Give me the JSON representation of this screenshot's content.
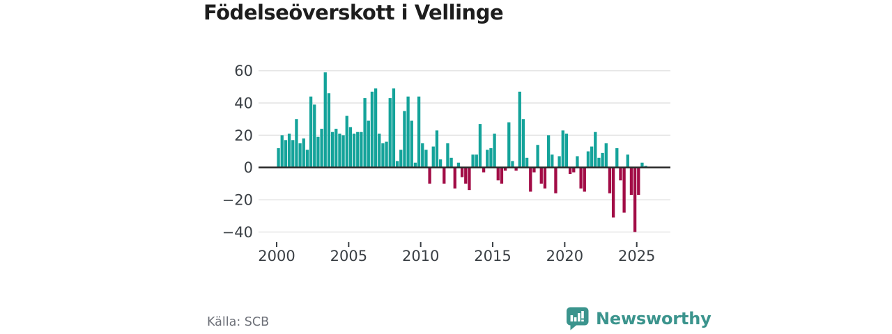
{
  "page": {
    "title": "Födelseöverskott i Vellinge"
  },
  "footer": {
    "source": "Källa: SCB",
    "logo_text": "Newsworthy"
  },
  "icons": {
    "logo_icon": "bar-chart-speech-bubble"
  },
  "colors": {
    "positive_bar": "#14a39a",
    "negative_bar": "#a20c46",
    "zero_axis": "#2e2e2e",
    "gridline": "#e3e3e3",
    "tick_text": "#3a3f44",
    "title_text": "#1d1d1d",
    "source_text": "#6d7078",
    "logo": "#3b948d"
  },
  "chart_data": {
    "type": "bar",
    "title": "Födelseöverskott i Vellinge",
    "xlabel": "",
    "ylabel": "",
    "period": "quarterly",
    "start": "2000 Q1",
    "end": "2025 Q3",
    "ylim": [
      -45,
      65
    ],
    "grid": true,
    "y_ticks": [
      60,
      40,
      20,
      0,
      -20,
      -40
    ],
    "x_ticks": [
      2000,
      2005,
      2010,
      2015,
      2020,
      2025
    ],
    "series": [
      {
        "name": "Födelseöverskott",
        "values": [
          12,
          20,
          17,
          21,
          17,
          30,
          15,
          18,
          11,
          44,
          39,
          19,
          24,
          59,
          46,
          22,
          24,
          21,
          20,
          32,
          25,
          21,
          22,
          22,
          43,
          29,
          47,
          49,
          21,
          15,
          16,
          43,
          49,
          4,
          11,
          35,
          44,
          29,
          3,
          44,
          15,
          11,
          -10,
          13,
          23,
          5,
          -10,
          15,
          6,
          -13,
          3,
          -6,
          -10,
          -14,
          8,
          8,
          27,
          -3,
          11,
          12,
          21,
          -8,
          -10,
          -2,
          28,
          4,
          -2,
          47,
          30,
          6,
          -15,
          -3,
          14,
          -10,
          -13,
          20,
          8,
          -16,
          7,
          23,
          21,
          -4,
          -3,
          7,
          -13,
          -15,
          10,
          13,
          22,
          6,
          9,
          15,
          -16,
          -31,
          12,
          -8,
          -28,
          8,
          -17,
          -40,
          -17,
          3,
          1
        ]
      }
    ]
  }
}
